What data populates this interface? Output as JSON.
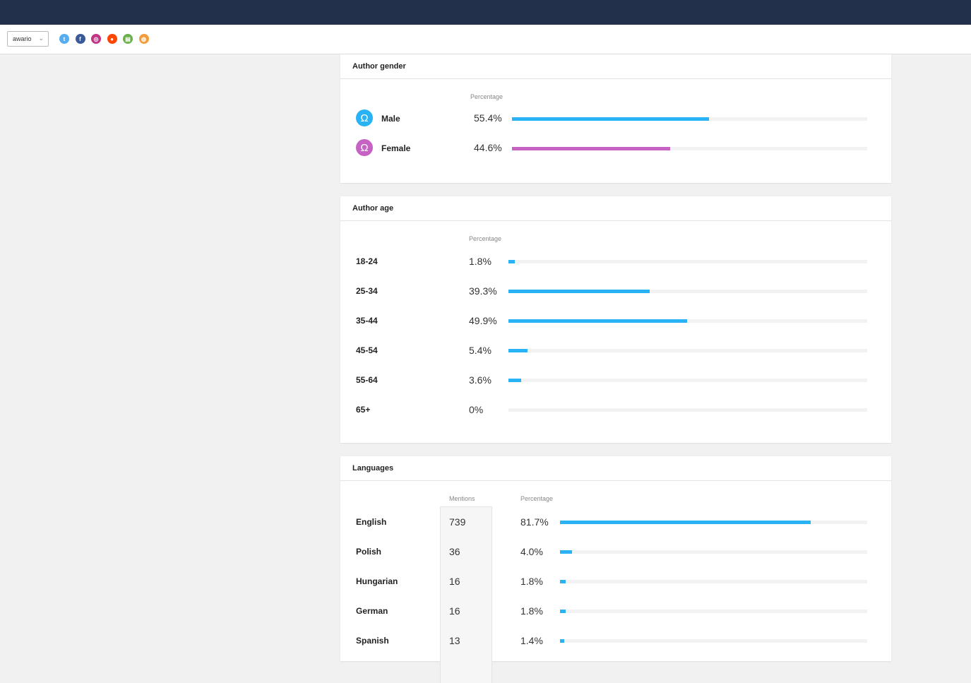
{
  "toolbar": {
    "select_value": "awario",
    "chevron": "⌄",
    "source_icons": [
      {
        "name": "twitter-icon",
        "glyph": "t",
        "color": "#55acee"
      },
      {
        "name": "facebook-icon",
        "glyph": "f",
        "color": "#3b5998"
      },
      {
        "name": "instagram-icon",
        "glyph": "◎",
        "color": "#c13584"
      },
      {
        "name": "reddit-icon",
        "glyph": "●",
        "color": "#ff4500"
      },
      {
        "name": "news-icon",
        "glyph": "▤",
        "color": "#6ab04c"
      },
      {
        "name": "web-icon",
        "glyph": "◍",
        "color": "#f39c3c"
      }
    ]
  },
  "gender": {
    "title": "Author gender",
    "col_header": "Percentage",
    "rows": [
      {
        "label": "Male",
        "value": "55.4%",
        "fraction": 0.554,
        "color": "#29b3f5",
        "icon": "Ω"
      },
      {
        "label": "Female",
        "value": "44.6%",
        "fraction": 0.446,
        "color": "#c662c4",
        "icon": "Ω"
      }
    ]
  },
  "age": {
    "title": "Author age",
    "col_header": "Percentage",
    "rows": [
      {
        "label": "18-24",
        "value": "1.8%",
        "fraction": 0.018
      },
      {
        "label": "25-34",
        "value": "39.3%",
        "fraction": 0.393
      },
      {
        "label": "35-44",
        "value": "49.9%",
        "fraction": 0.499
      },
      {
        "label": "45-54",
        "value": "5.4%",
        "fraction": 0.054
      },
      {
        "label": "55-64",
        "value": "3.6%",
        "fraction": 0.036
      },
      {
        "label": "65+",
        "value": "0%",
        "fraction": 0
      }
    ]
  },
  "languages": {
    "title": "Languages",
    "mentions_header": "Mentions",
    "pct_header": "Percentage",
    "rows": [
      {
        "label": "English",
        "mentions": "739",
        "value": "81.7%",
        "fraction": 0.817
      },
      {
        "label": "Polish",
        "mentions": "36",
        "value": "4.0%",
        "fraction": 0.04
      },
      {
        "label": "Hungarian",
        "mentions": "16",
        "value": "1.8%",
        "fraction": 0.018
      },
      {
        "label": "German",
        "mentions": "16",
        "value": "1.8%",
        "fraction": 0.018
      },
      {
        "label": "Spanish",
        "mentions": "13",
        "value": "1.4%",
        "fraction": 0.014
      }
    ]
  },
  "colors": {
    "accent": "#29b3f5",
    "female": "#c662c4",
    "topbar": "#23304c"
  }
}
